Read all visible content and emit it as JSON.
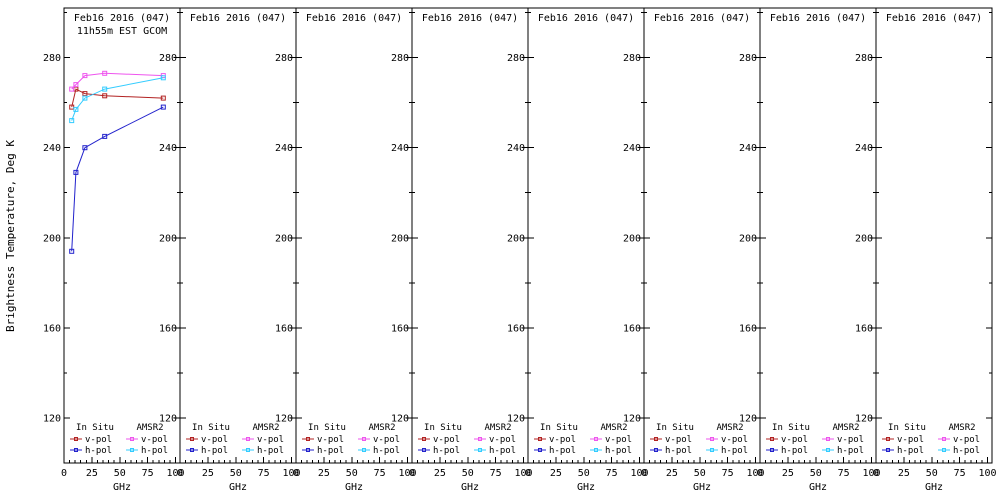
{
  "chart_data": {
    "type": "line",
    "panel_title": "Feb16 2016 (047)",
    "panel_subtitle": "11h55m EST GCOM",
    "subtitle_panel_index": 0,
    "num_panels": 8,
    "xlabel": "GHz",
    "ylabel": "Brightness Temperature, Deg K",
    "xlim": [
      0,
      104
    ],
    "ylim": [
      100,
      302
    ],
    "x_ticks": [
      0,
      25,
      50,
      75,
      100
    ],
    "y_ticks": [
      120,
      160,
      200,
      240,
      280
    ],
    "x_minor_step": 5,
    "y_minor_step": 20,
    "grid": false,
    "data_panel_index": 0,
    "x": [
      6.9,
      10.7,
      18.7,
      36.5,
      89.0
    ],
    "series": [
      {
        "name": "In Situ v-pol",
        "color": "#b22222",
        "values": [
          258,
          266,
          264,
          263,
          262
        ]
      },
      {
        "name": "In Situ h-pol",
        "color": "#2222cc",
        "values": [
          194,
          229,
          240,
          245,
          258
        ]
      },
      {
        "name": "AMSR2 v-pol",
        "color": "#ee55ee",
        "values": [
          266,
          268,
          272,
          273,
          272
        ]
      },
      {
        "name": "AMSR2 h-pol",
        "color": "#33ccff",
        "values": [
          252,
          257,
          262,
          266,
          271
        ]
      }
    ],
    "legend": {
      "position": "bottom-inside-each-panel",
      "column_headers": [
        "In Situ",
        "AMSR2"
      ],
      "row_labels": [
        "v-pol",
        "h-pol"
      ],
      "column_series": [
        [
          0,
          1
        ],
        [
          2,
          3
        ]
      ]
    }
  }
}
